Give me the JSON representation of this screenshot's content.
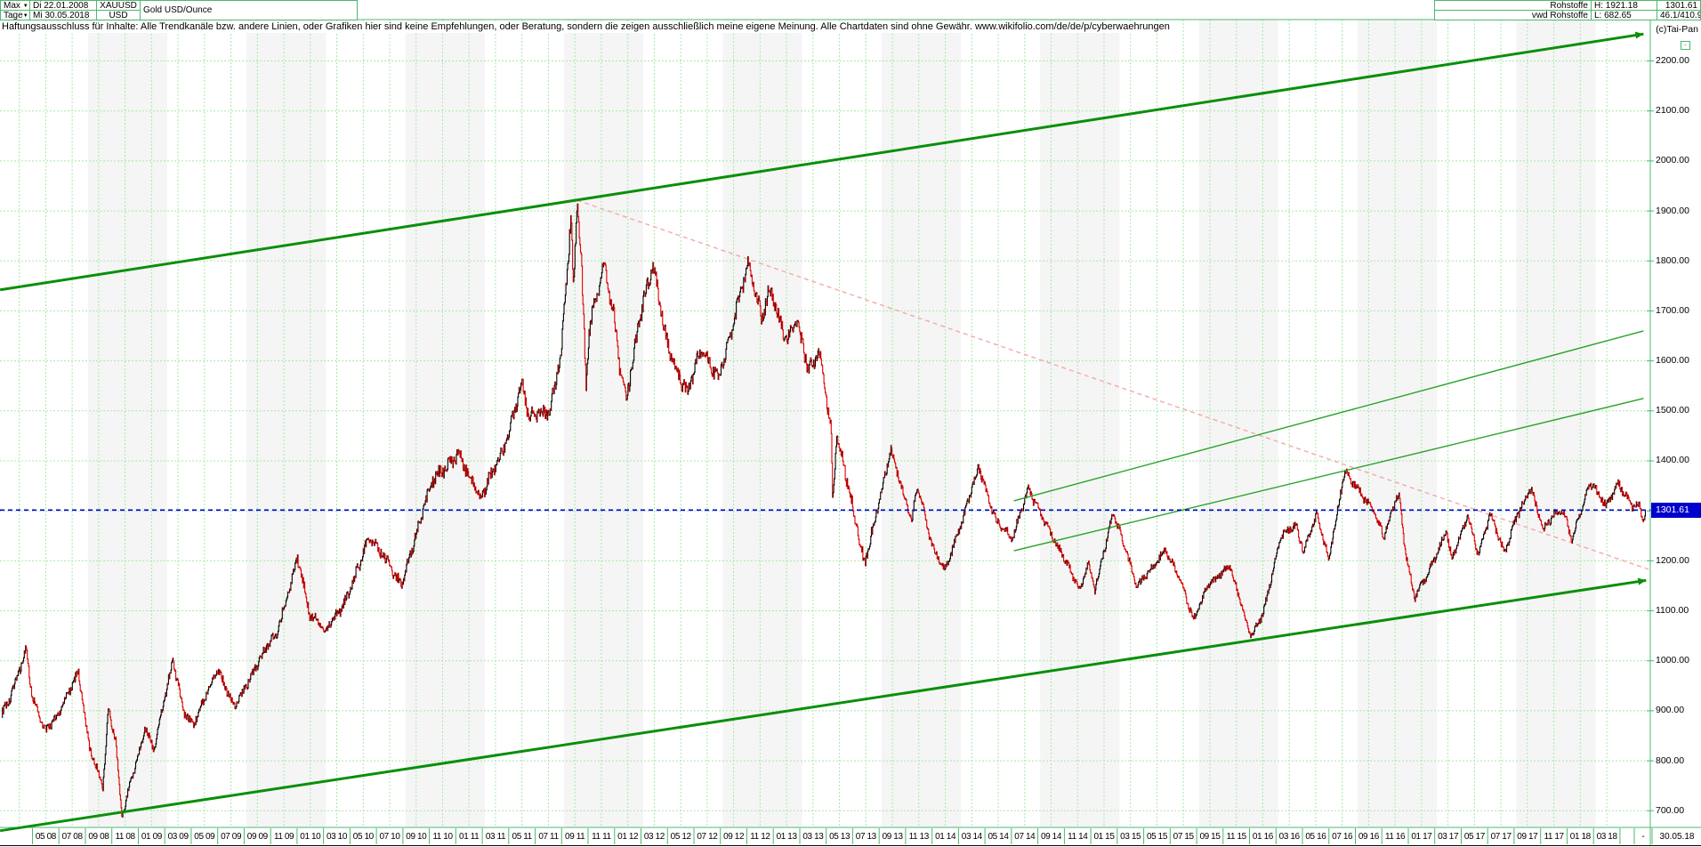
{
  "header": {
    "range_selector": {
      "label": "Max"
    },
    "period_selector": {
      "label": "Tage"
    },
    "date_from": "Di 22.01.2008",
    "date_to": "Mi 30.05.2018",
    "symbol": "XAUUSD",
    "currency": "USD",
    "instrument_title": "Gold USD/Ounce",
    "category": "Rohstoffe",
    "data_source": "vwd Rohstoffe",
    "high_label": "H: 1921.18",
    "low_label": "L: 682.65",
    "last_price": "1301.61",
    "range_info": "46.1/410.9",
    "copyright": "(c)Tai-Pan",
    "collapse_glyph": "-"
  },
  "disclaimer": "Haftungsausschluss für Inhalte: Alle Trendkanäle bzw. andere Linien, oder Grafiken hier sind keine Empfehlungen, oder Beratung, sondern die zeigen ausschließlich meine eigene Meinung. Alle Chartdaten sind ohne Gewähr.  www.wikifolio.com/de/de/p/cyberwaehrungen",
  "axes": {
    "price_marker": "1301.61",
    "y_labels": [
      {
        "text": "2200.00",
        "value": 2200
      },
      {
        "text": "2100.00",
        "value": 2100
      },
      {
        "text": "2000.00",
        "value": 2000
      },
      {
        "text": "1900.00",
        "value": 1900
      },
      {
        "text": "1800.00",
        "value": 1800
      },
      {
        "text": "1700.00",
        "value": 1700
      },
      {
        "text": "1600.00",
        "value": 1600
      },
      {
        "text": "1500.00",
        "value": 1500
      },
      {
        "text": "1400.00",
        "value": 1400
      },
      {
        "text": "1200.00",
        "value": 1200
      },
      {
        "text": "1100.00",
        "value": 1100
      },
      {
        "text": "1000.00",
        "value": 1000
      },
      {
        "text": "900.00",
        "value": 900
      },
      {
        "text": "800.00",
        "value": 800
      },
      {
        "text": "700.00",
        "value": 700
      }
    ],
    "x_labels": [
      "05 08",
      "07 08",
      "09 08",
      "11 08",
      "01 09",
      "03 09",
      "05 09",
      "07 09",
      "09 09",
      "11 09",
      "01 10",
      "03 10",
      "05 10",
      "07 10",
      "09 10",
      "11 10",
      "01 11",
      "03 11",
      "05 11",
      "07 11",
      "09 11",
      "11 11",
      "01 12",
      "03 12",
      "05 12",
      "07 12",
      "09 12",
      "11 12",
      "01 13",
      "03 13",
      "05 13",
      "07 13",
      "09 13",
      "11 13",
      "01 14",
      "03 14",
      "05 14",
      "07 14",
      "09 14",
      "11 14",
      "01 15",
      "03 15",
      "05 15",
      "07 15",
      "09 15",
      "11 15",
      "01 16",
      "03 16",
      "05 16",
      "07 16",
      "09 16",
      "11 16",
      "01 17",
      "03 17",
      "05 17",
      "07 17",
      "09 17",
      "11 17",
      "01 18",
      "03 18"
    ],
    "separator": "-",
    "end_date": "30.05.18"
  },
  "chart_data": {
    "type": "candlestick",
    "title": "Gold USD/Ounce (XAUUSD), daily, 22.01.2008 - 30.05.2018",
    "x_unit": "months since 22.01.2008",
    "y_range_shown": [
      700,
      2200
    ],
    "grid": true,
    "high": 1921.18,
    "low": 682.65,
    "last": 1301.61,
    "series": [
      [
        0,
        890
      ],
      [
        0.65,
        925
      ],
      [
        1.1,
        968
      ],
      [
        1.84,
        1028
      ],
      [
        2.3,
        930
      ],
      [
        3.31,
        855
      ],
      [
        4.2,
        885
      ],
      [
        5.77,
        984
      ],
      [
        6.6,
        830
      ],
      [
        7.64,
        745
      ],
      [
        8.05,
        898
      ],
      [
        8.6,
        840
      ],
      [
        9.07,
        688
      ],
      [
        9.6,
        748
      ],
      [
        10.3,
        815
      ],
      [
        10.84,
        868
      ],
      [
        11.5,
        818
      ],
      [
        12.93,
        1000
      ],
      [
        13.8,
        900
      ],
      [
        14.47,
        875
      ],
      [
        16.3,
        978
      ],
      [
        17.53,
        912
      ],
      [
        19.8,
        1012
      ],
      [
        20.8,
        1055
      ],
      [
        22.37,
        1212
      ],
      [
        23.3,
        1090
      ],
      [
        24.43,
        1055
      ],
      [
        26,
        1125
      ],
      [
        27.73,
        1243
      ],
      [
        29,
        1200
      ],
      [
        30.2,
        1158
      ],
      [
        32.5,
        1352
      ],
      [
        34.5,
        1422
      ],
      [
        36.2,
        1318
      ],
      [
        38.07,
        1438
      ],
      [
        39.33,
        1565
      ],
      [
        39.83,
        1480
      ],
      [
        41.4,
        1497
      ],
      [
        42.3,
        1630
      ],
      [
        43.03,
        1898
      ],
      [
        43.2,
        1735
      ],
      [
        43.5,
        1921.18
      ],
      [
        43.8,
        1792
      ],
      [
        44.16,
        1545
      ],
      [
        44.4,
        1655
      ],
      [
        45.53,
        1795
      ],
      [
        46.3,
        1692
      ],
      [
        46.77,
        1580
      ],
      [
        47.23,
        1530
      ],
      [
        48.1,
        1662
      ],
      [
        49.2,
        1788
      ],
      [
        50.3,
        1642
      ],
      [
        51.8,
        1532
      ],
      [
        52.9,
        1622
      ],
      [
        54.1,
        1568
      ],
      [
        55.4,
        1692
      ],
      [
        56.43,
        1790
      ],
      [
        57.43,
        1680
      ],
      [
        58.03,
        1750
      ],
      [
        59.4,
        1642
      ],
      [
        60,
        1680
      ],
      [
        60.97,
        1574
      ],
      [
        61.8,
        1612
      ],
      [
        62.67,
        1478
      ],
      [
        62.8,
        1330
      ],
      [
        63.1,
        1460
      ],
      [
        63.83,
        1368
      ],
      [
        65.2,
        1186
      ],
      [
        66.3,
        1322
      ],
      [
        67.2,
        1428
      ],
      [
        68.77,
        1272
      ],
      [
        69.2,
        1348
      ],
      [
        70.3,
        1232
      ],
      [
        71.3,
        1184
      ],
      [
        72.5,
        1268
      ],
      [
        73.83,
        1386
      ],
      [
        75.2,
        1282
      ],
      [
        76.4,
        1243
      ],
      [
        77.6,
        1338
      ],
      [
        79.3,
        1260
      ],
      [
        81.5,
        1135
      ],
      [
        82.1,
        1198
      ],
      [
        82.6,
        1144
      ],
      [
        84,
        1300
      ],
      [
        85.8,
        1146
      ],
      [
        87.9,
        1226
      ],
      [
        88.9,
        1170
      ],
      [
        90.07,
        1080
      ],
      [
        91.2,
        1158
      ],
      [
        92.8,
        1186
      ],
      [
        94.4,
        1048
      ],
      [
        95.3,
        1096
      ],
      [
        96.7,
        1248
      ],
      [
        97.8,
        1268
      ],
      [
        98.4,
        1218
      ],
      [
        99.4,
        1298
      ],
      [
        100.3,
        1205
      ],
      [
        101.5,
        1372
      ],
      [
        102.3,
        1350
      ],
      [
        103.6,
        1308
      ],
      [
        104.5,
        1250
      ],
      [
        105.2,
        1304
      ],
      [
        105.6,
        1330
      ],
      [
        106.1,
        1212
      ],
      [
        106.8,
        1128
      ],
      [
        107.8,
        1180
      ],
      [
        109.2,
        1256
      ],
      [
        109.6,
        1197
      ],
      [
        110.8,
        1290
      ],
      [
        111.6,
        1217
      ],
      [
        112.5,
        1294
      ],
      [
        113.6,
        1210
      ],
      [
        114.5,
        1286
      ],
      [
        115.6,
        1352
      ],
      [
        116.5,
        1263
      ],
      [
        117.3,
        1288
      ],
      [
        118.1,
        1290
      ],
      [
        118.7,
        1240
      ],
      [
        119.4,
        1310
      ],
      [
        120.1,
        1360
      ],
      [
        121.3,
        1306
      ],
      [
        122.2,
        1350
      ],
      [
        123.3,
        1308
      ],
      [
        123.8,
        1320
      ],
      [
        124.0,
        1286
      ],
      [
        124.27,
        1301.61
      ]
    ],
    "trend_lines": [
      {
        "name": "upper-channel",
        "style": "solid",
        "color": "#0a8f0a",
        "width": 3,
        "arrow": true,
        "points": [
          [
            -0.13,
            1742
          ],
          [
            124.1,
            2254
          ]
        ]
      },
      {
        "name": "lower-channel",
        "style": "solid",
        "color": "#0a8f0a",
        "width": 3,
        "arrow": true,
        "points": [
          [
            -0.13,
            660
          ],
          [
            124.3,
            1161
          ]
        ]
      },
      {
        "name": "inner-upper",
        "style": "solid",
        "color": "#27a327",
        "width": 1.4,
        "arrow": false,
        "points": [
          [
            76.5,
            1320
          ],
          [
            124.1,
            1660
          ]
        ]
      },
      {
        "name": "inner-lower",
        "style": "solid",
        "color": "#27a327",
        "width": 1.4,
        "arrow": false,
        "points": [
          [
            76.5,
            1220
          ],
          [
            124.1,
            1525
          ]
        ]
      },
      {
        "name": "downtrend-dashed",
        "style": "dashed",
        "color": "#f5a8a8",
        "width": 1.4,
        "arrow": false,
        "points": [
          [
            43.5,
            1921.4
          ],
          [
            124.6,
            1183
          ]
        ]
      },
      {
        "name": "current-price-line",
        "style": "dashed",
        "color": "#0000cc",
        "width": 1.6,
        "horizontal_at": 1301.61
      }
    ],
    "colors": {
      "up": "#000000",
      "down": "#dd0000",
      "grid": "#a8e8a8",
      "frame": "#4db870",
      "band": "#f5f5f5",
      "marker_bg": "#0000cc",
      "marker_text": "#ffffff"
    }
  }
}
